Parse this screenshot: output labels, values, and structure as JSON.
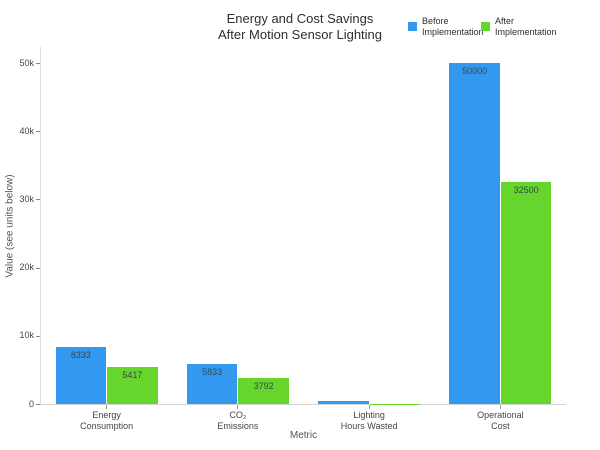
{
  "title": {
    "line1": "Energy and Cost Savings",
    "line2": "After Motion Sensor Lighting"
  },
  "legend": {
    "items": [
      {
        "lines": [
          "Before",
          "Implementation"
        ],
        "color": "#3399f0"
      },
      {
        "lines": [
          "After",
          "Implementation"
        ],
        "color": "#66d62c"
      }
    ]
  },
  "axes": {
    "y_title": "Value (see units below)",
    "x_title": "Metric",
    "y_tick_labels": [
      "0",
      "10k",
      "20k",
      "30k",
      "40k",
      "50k"
    ],
    "y_tick_values": [
      0,
      10000,
      20000,
      30000,
      40000,
      50000
    ]
  },
  "chart_data": {
    "type": "bar",
    "title": "Energy and Cost Savings After Motion Sensor Lighting",
    "categories": [
      "Energy Consumption",
      "CO₂ Emissions",
      "Lighting Hours Wasted",
      "Operational Cost"
    ],
    "category_label_lines": [
      [
        "Energy",
        "Consumption"
      ],
      [
        "CO₂",
        "Emissions"
      ],
      [
        "Lighting",
        "Hours Wasted"
      ],
      [
        "Operational",
        "Cost"
      ]
    ],
    "series": [
      {
        "name": "Before Implementation",
        "color": "#3399f0",
        "values": [
          8333,
          5833,
          417,
          50000
        ]
      },
      {
        "name": "After Implementation",
        "color": "#66d62c",
        "values": [
          5417,
          3792,
          63,
          32500
        ]
      }
    ],
    "xlabel": "Metric",
    "ylabel": "Value (see units below)",
    "ylim": [
      0,
      50000
    ],
    "grid": false,
    "legend_position": "top-right",
    "bar_value_labels_visible": [
      "8333",
      "5417",
      "5833",
      "3792",
      "50000",
      "32500"
    ]
  }
}
